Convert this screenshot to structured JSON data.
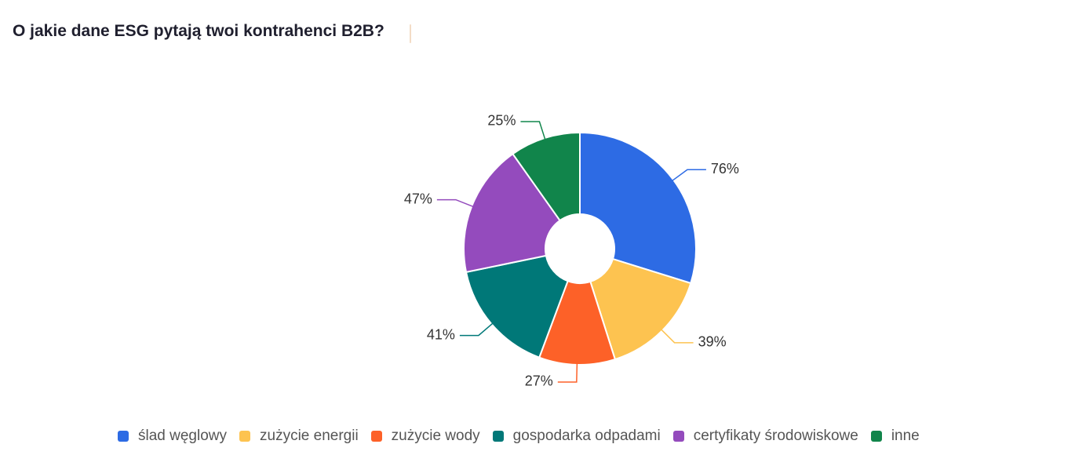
{
  "title": "O jakie dane ESG pytają twoi kontrahenci B2B?",
  "chart_data": {
    "type": "pie",
    "donut": true,
    "title": "O jakie dane ESG pytają twoi kontrahenci B2B?",
    "categories": [
      "ślad węglowy",
      "zużycie energii",
      "zużycie wody",
      "gospodarka odpadami",
      "certyfikaty środowiskowe",
      "inne"
    ],
    "values": [
      76,
      39,
      27,
      41,
      47,
      25
    ],
    "value_labels": [
      "76%",
      "39%",
      "27%",
      "41%",
      "47%",
      "25%"
    ],
    "colors": [
      "#2d6be4",
      "#fdc350",
      "#fd6128",
      "#007878",
      "#944bbd",
      "#11854b"
    ],
    "legend_position": "bottom"
  }
}
